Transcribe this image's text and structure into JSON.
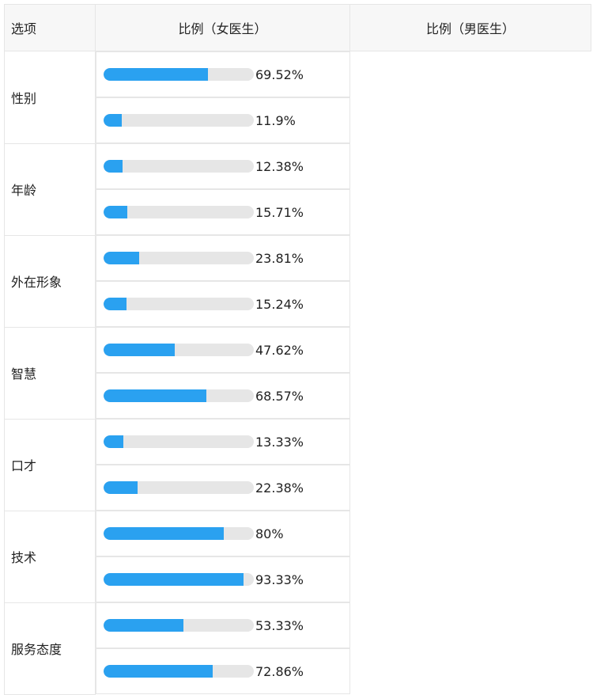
{
  "header": {
    "item": "选项",
    "female": "比例（女医生）",
    "male": "比例（男医生）"
  },
  "colors": {
    "bar_fill": "#2aa1f0",
    "bar_track": "#e6e6e6"
  },
  "chart_data": {
    "type": "table",
    "columns": [
      "选项",
      "比例（女医生）",
      "比例（男医生）"
    ],
    "categories": [
      "性别",
      "年龄",
      "外在形象",
      "智慧",
      "口才",
      "技术",
      "服务态度"
    ],
    "series": [
      {
        "name": "比例（女医生）",
        "values": [
          69.52,
          12.38,
          23.81,
          47.62,
          13.33,
          80,
          53.33
        ],
        "labels": [
          "69.52%",
          "12.38%",
          "23.81%",
          "47.62%",
          "13.33%",
          "80%",
          "53.33%"
        ]
      },
      {
        "name": "比例（男医生）",
        "values": [
          11.9,
          15.71,
          15.24,
          68.57,
          22.38,
          93.33,
          72.86
        ],
        "labels": [
          "11.9%",
          "15.71%",
          "15.24%",
          "68.57%",
          "22.38%",
          "93.33%",
          "72.86%"
        ]
      }
    ]
  }
}
